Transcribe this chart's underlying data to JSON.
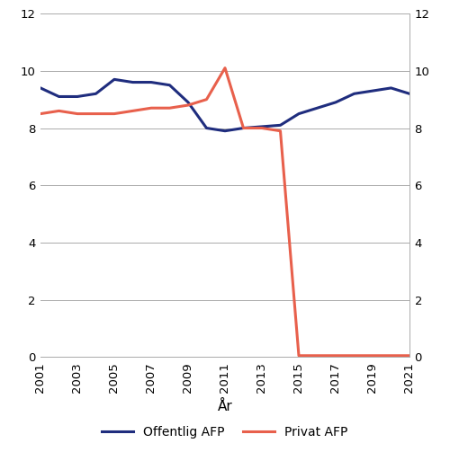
{
  "offentlig_years": [
    2001,
    2002,
    2003,
    2004,
    2005,
    2006,
    2007,
    2008,
    2009,
    2010,
    2011,
    2012,
    2013,
    2014,
    2015,
    2016,
    2017,
    2018,
    2019,
    2020,
    2021
  ],
  "offentlig_values": [
    9.4,
    9.1,
    9.1,
    9.2,
    9.7,
    9.6,
    9.6,
    9.5,
    8.9,
    8.0,
    7.9,
    8.0,
    8.05,
    8.1,
    8.5,
    8.7,
    8.9,
    9.2,
    9.3,
    9.4,
    9.2
  ],
  "privat_years": [
    2001,
    2002,
    2003,
    2004,
    2005,
    2006,
    2007,
    2008,
    2009,
    2010,
    2011,
    2012,
    2013,
    2014,
    2015,
    2016,
    2017,
    2018,
    2019,
    2020,
    2021
  ],
  "privat_values": [
    8.5,
    8.6,
    8.5,
    8.5,
    8.5,
    8.6,
    8.7,
    8.7,
    8.8,
    9.0,
    10.1,
    8.0,
    8.0,
    7.9,
    0.05,
    0.05,
    0.05,
    0.05,
    0.05,
    0.05,
    0.05
  ],
  "offentlig_color": "#1f2d7e",
  "privat_color": "#e8604c",
  "xlabel": "År",
  "ylim": [
    0,
    12
  ],
  "yticks": [
    0,
    2,
    4,
    6,
    8,
    10,
    12
  ],
  "xticks": [
    2001,
    2003,
    2005,
    2007,
    2009,
    2011,
    2013,
    2015,
    2017,
    2019,
    2021
  ],
  "legend_offentlig": "Offentlig AFP",
  "legend_privat": "Privat AFP",
  "line_width": 2.2,
  "background_color": "#ffffff",
  "grid_color": "#aaaaaa"
}
